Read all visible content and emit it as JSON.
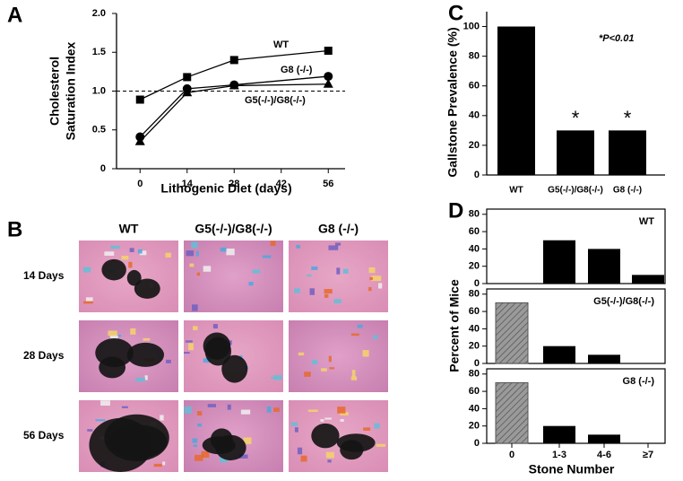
{
  "chart_data": [
    {
      "panel": "A",
      "type": "line",
      "xlabel": "Lithogenic Diet (days)",
      "ylabel": [
        "Cholesterol",
        "Saturation Index"
      ],
      "x": [
        0,
        14,
        28,
        56
      ],
      "xlim": [
        -7,
        61
      ],
      "xticks": [
        0,
        14,
        28,
        42,
        56
      ],
      "ylim": [
        0,
        2
      ],
      "yticks": [
        0,
        0.5,
        {
          "value": 1,
          "label": "1.0"
        },
        1.5,
        {
          "value": 2,
          "label": "2.0"
        }
      ],
      "reference_line": 1,
      "series": [
        {
          "name": "WT",
          "color": "#000000",
          "marker": "square",
          "values": [
            0.89,
            1.18,
            1.4,
            1.52
          ]
        },
        {
          "name": "G8 (-/-)",
          "color": "#000000",
          "marker": "circle",
          "values": [
            0.41,
            1.03,
            1.08,
            1.19
          ]
        },
        {
          "name": "G5(-/-)/G8(-/-)",
          "color": "#000000",
          "marker": "triangle",
          "values": [
            0.35,
            0.98,
            1.07,
            1.09
          ]
        }
      ]
    },
    {
      "panel": "C",
      "type": "bar",
      "ylabel": "Gallstone Prevalence (%)",
      "categories": [
        "WT",
        "G5(-/-)/G8(-/-)",
        "G8 (-/-)"
      ],
      "values": [
        100,
        30,
        30
      ],
      "color": "#000000",
      "ylim": [
        0,
        110
      ],
      "yticks": [
        0,
        20,
        40,
        60,
        80,
        100
      ],
      "bar_marks": [
        null,
        "*",
        "*"
      ],
      "annotation": "*P<0.01"
    },
    {
      "panel": "D",
      "type": "bar_panels",
      "ylabel": "Percent of Mice",
      "xlabel": "Stone Number",
      "categories": [
        "0",
        "1-3",
        "4-6",
        "≥7"
      ],
      "colors": [
        "#8c8c8c",
        "#000000",
        "#000000",
        "#000000"
      ],
      "hatched": [
        true,
        false,
        false,
        false
      ],
      "ylim": [
        0,
        86
      ],
      "yticks": [
        0,
        20,
        40,
        60,
        80
      ],
      "panels": [
        {
          "name": "WT",
          "values": [
            0,
            50,
            40,
            10
          ]
        },
        {
          "name": "G5(-/-)/G8(-/-)",
          "values": [
            70,
            20,
            10,
            0
          ]
        },
        {
          "name": "G8 (-/-)",
          "values": [
            70,
            20,
            10,
            0
          ]
        }
      ]
    }
  ],
  "micrographs": {
    "panel": "B",
    "columns": [
      "WT",
      "G5(-/-)/G8(-/-)",
      "G8 (-/-)"
    ],
    "rows": [
      "14 Days",
      "28 Days",
      "56 Days"
    ]
  }
}
